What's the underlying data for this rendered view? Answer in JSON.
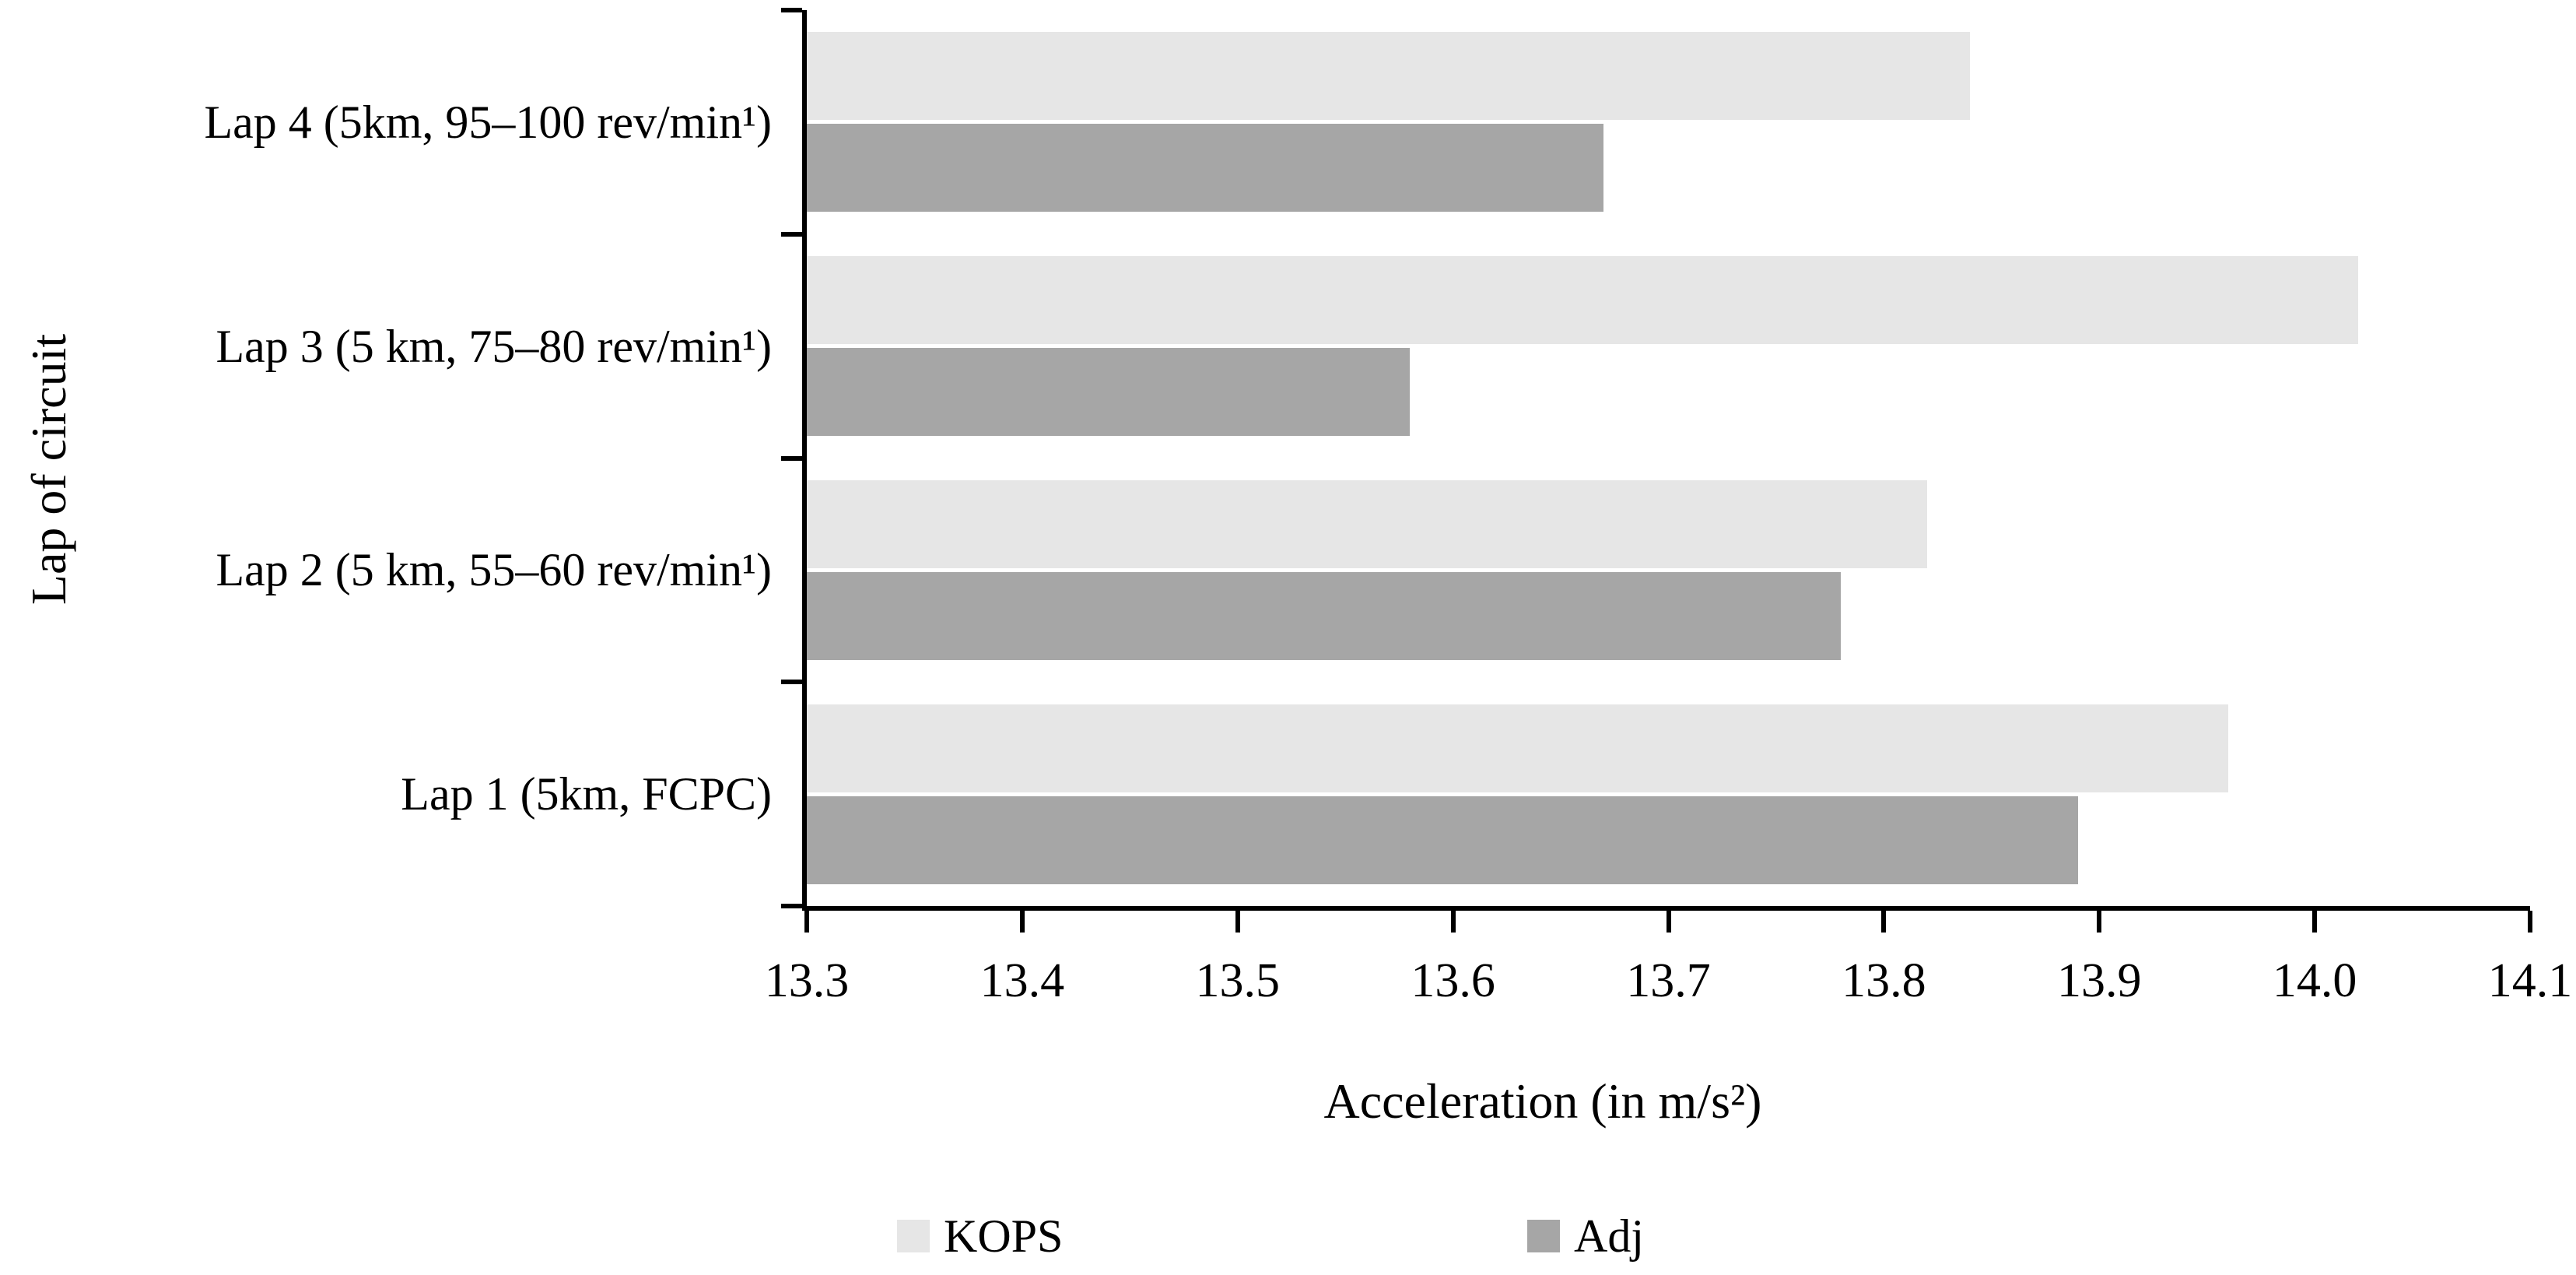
{
  "chart_data": {
    "type": "bar",
    "orientation": "horizontal",
    "title": "",
    "xlabel": "Acceleration (in m/s²)",
    "ylabel": "Lap of circuit",
    "categories": [
      "Lap 4 (5km, 95–100 rev/min¹)",
      "Lap 3 (5 km, 75–80 rev/min¹)",
      "Lap 2 (5 km, 55–60 rev/min¹)",
      "Lap 1 (5km, FCPC)"
    ],
    "series": [
      {
        "name": "KOPS",
        "color": "#e6e6e6",
        "values": [
          13.84,
          14.02,
          13.82,
          13.96
        ]
      },
      {
        "name": "Adj",
        "color": "#a6a6a6",
        "values": [
          13.67,
          13.58,
          13.78,
          13.89
        ]
      }
    ],
    "xlim": [
      13.3,
      14.1
    ],
    "xticks": [
      "13.3",
      "13.4",
      "13.5",
      "13.6",
      "13.7",
      "13.8",
      "13.9",
      "14.0",
      "14.1"
    ],
    "grid": false,
    "legend_position": "bottom",
    "axis_color": "#000000",
    "background_color": "#ffffff"
  }
}
